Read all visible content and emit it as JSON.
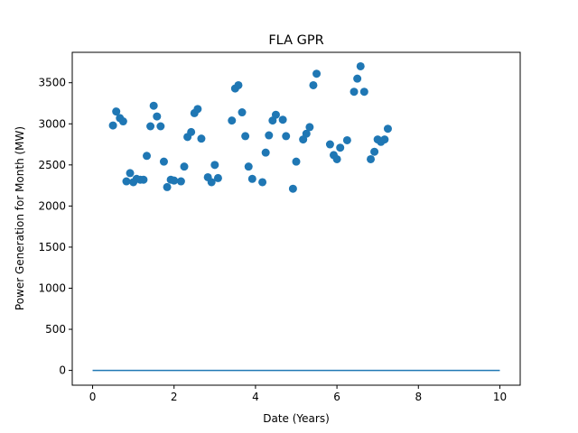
{
  "chart_data": {
    "type": "scatter",
    "title": "FLA GPR",
    "xlabel": "Date (Years)",
    "ylabel": "Power Generation for Month (MW)",
    "xlim": [
      -0.5,
      10.5
    ],
    "ylim": [
      -180,
      3870
    ],
    "xticks": [
      0,
      2,
      4,
      6,
      8,
      10
    ],
    "yticks": [
      0,
      500,
      1000,
      1500,
      2000,
      2500,
      3000,
      3500
    ],
    "grid": false,
    "legend": "none",
    "colors": {
      "series": "#1f77b4",
      "axis": "#000000"
    },
    "series": [
      {
        "kind": "scatter",
        "points": [
          [
            0.5,
            2980
          ],
          [
            0.58,
            3150
          ],
          [
            0.67,
            3070
          ],
          [
            0.75,
            3030
          ],
          [
            0.83,
            2300
          ],
          [
            0.92,
            2400
          ],
          [
            1.0,
            2290
          ],
          [
            1.08,
            2330
          ],
          [
            1.17,
            2320
          ],
          [
            1.25,
            2320
          ],
          [
            1.33,
            2610
          ],
          [
            1.42,
            2970
          ],
          [
            1.5,
            3220
          ],
          [
            1.58,
            3090
          ],
          [
            1.67,
            2970
          ],
          [
            1.75,
            2540
          ],
          [
            1.83,
            2230
          ],
          [
            1.92,
            2320
          ],
          [
            2.0,
            2310
          ],
          [
            2.17,
            2300
          ],
          [
            2.25,
            2480
          ],
          [
            2.33,
            2840
          ],
          [
            2.42,
            2900
          ],
          [
            2.5,
            3130
          ],
          [
            2.58,
            3180
          ],
          [
            2.67,
            2820
          ],
          [
            2.83,
            2350
          ],
          [
            2.92,
            2290
          ],
          [
            3.0,
            2500
          ],
          [
            3.08,
            2340
          ],
          [
            3.42,
            3040
          ],
          [
            3.5,
            3430
          ],
          [
            3.58,
            3470
          ],
          [
            3.67,
            3140
          ],
          [
            3.75,
            2850
          ],
          [
            3.83,
            2480
          ],
          [
            3.92,
            2330
          ],
          [
            4.17,
            2290
          ],
          [
            4.25,
            2650
          ],
          [
            4.33,
            2860
          ],
          [
            4.42,
            3040
          ],
          [
            4.5,
            3110
          ],
          [
            4.67,
            3050
          ],
          [
            4.75,
            2850
          ],
          [
            4.92,
            2210
          ],
          [
            5.0,
            2540
          ],
          [
            5.17,
            2810
          ],
          [
            5.25,
            2880
          ],
          [
            5.33,
            2960
          ],
          [
            5.42,
            3470
          ],
          [
            5.5,
            3610
          ],
          [
            5.83,
            2750
          ],
          [
            5.92,
            2620
          ],
          [
            6.0,
            2570
          ],
          [
            6.08,
            2710
          ],
          [
            6.25,
            2800
          ],
          [
            6.42,
            3390
          ],
          [
            6.5,
            3550
          ],
          [
            6.58,
            3700
          ],
          [
            6.67,
            3390
          ],
          [
            6.83,
            2570
          ],
          [
            6.92,
            2660
          ],
          [
            7.0,
            2810
          ],
          [
            7.08,
            2780
          ],
          [
            7.17,
            2810
          ],
          [
            7.25,
            2940
          ]
        ]
      },
      {
        "kind": "line",
        "x": [
          0,
          10
        ],
        "y": [
          0,
          0
        ]
      }
    ]
  }
}
